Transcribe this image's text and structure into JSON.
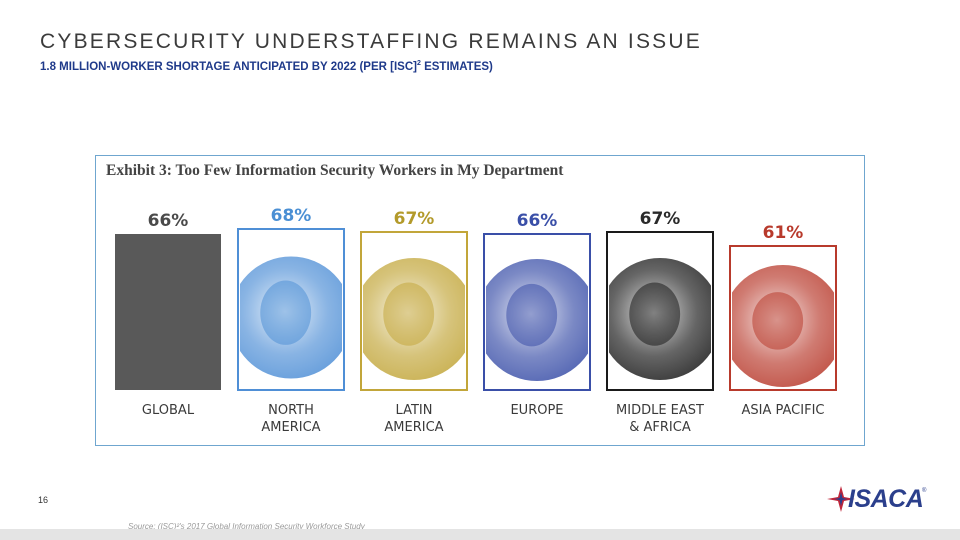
{
  "slide": {
    "title": "CYBERSECURITY UNDERSTAFFING REMAINS AN ISSUE",
    "subtitle_main": "1.8 MILLION-WORKER SHORTAGE ANTICIPATED BY 2022 (PER [ISC]",
    "subtitle_sup": "2",
    "subtitle_end": " ESTIMATES)",
    "page_number": "16",
    "source": "Source: (ISC)²'s 2017 Global Information Security Workforce Study",
    "logo_text": "ISACA",
    "logo_mark": "®"
  },
  "colors": {
    "accent_blue": "#1f3a8a",
    "frame_blue": "#6fa6cf",
    "gray": "#595959",
    "north_america": "#4f8fd6",
    "latin_america": "#c2a63a",
    "europe": "#3a4fa8",
    "middle_east": "#1a1a1a",
    "asia_pacific": "#b83a2c"
  },
  "chart_data": {
    "type": "bar",
    "title": "Exhibit 3: Too Few Information Security Workers in My Department",
    "categories": [
      [
        "GLOBAL"
      ],
      [
        "NORTH",
        "AMERICA"
      ],
      [
        "LATIN",
        "AMERICA"
      ],
      [
        "EUROPE"
      ],
      [
        "MIDDLE EAST",
        "& AFRICA"
      ],
      [
        "ASIA PACIFIC"
      ]
    ],
    "values": [
      66,
      68,
      67,
      66,
      67,
      61
    ],
    "value_labels": [
      "66%",
      "68%",
      "67%",
      "66%",
      "67%",
      "61%"
    ],
    "label_colors": [
      "#4a4a4a",
      "#4a8fd4",
      "#b39a2a",
      "#3a4fa8",
      "#2a2a2a",
      "#b83a2c"
    ],
    "fills": [
      "gray",
      "north_america",
      "latin_america",
      "europe",
      "middle_east",
      "asia_pacific"
    ],
    "unit": "%",
    "ylim": [
      0,
      100
    ]
  }
}
